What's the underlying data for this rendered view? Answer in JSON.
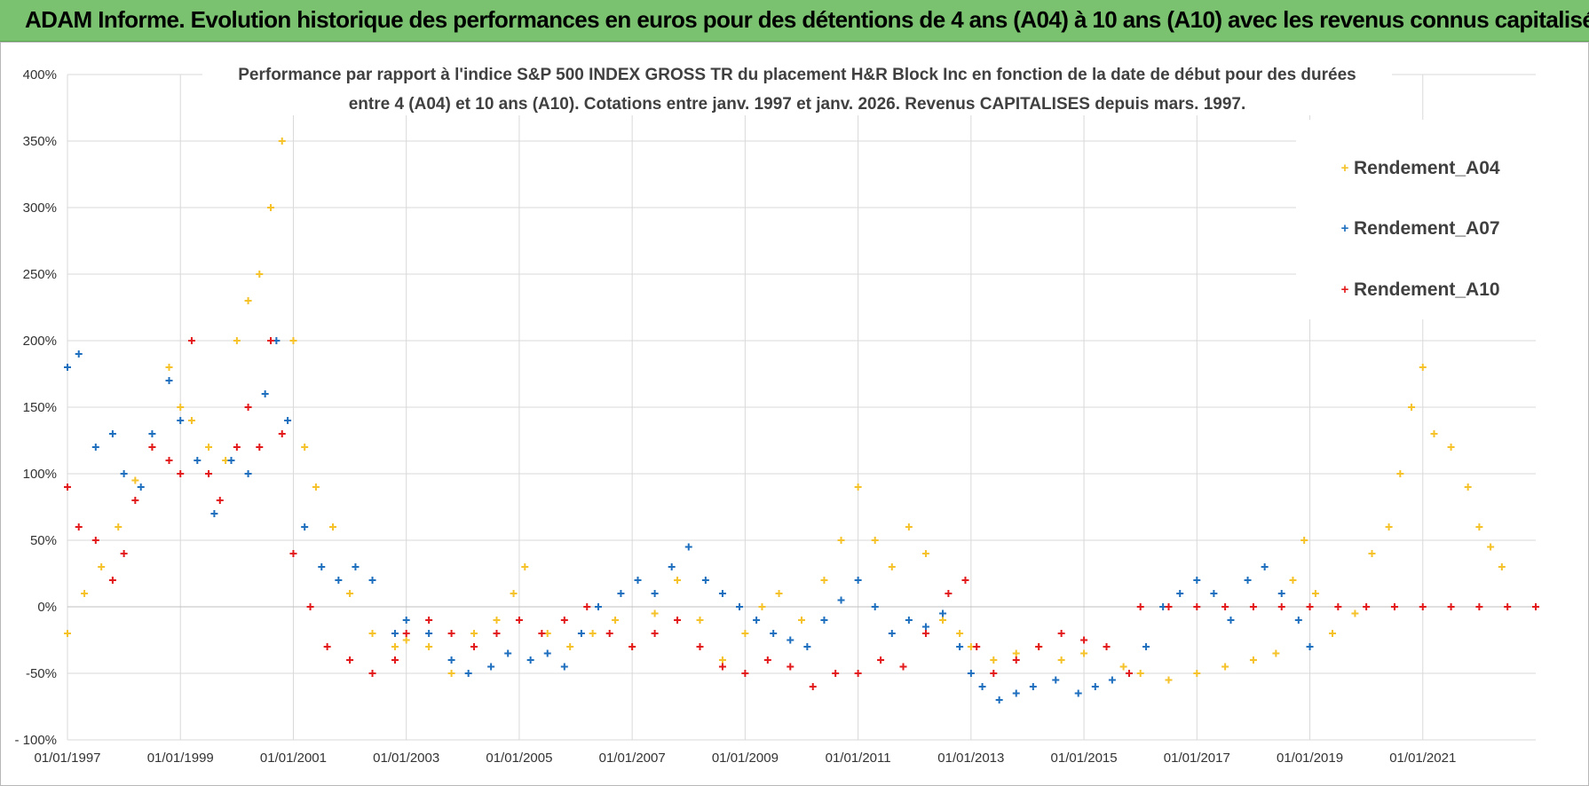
{
  "header": {
    "title": "ADAM Informe. Evolution historique des performances en euros pour des détentions de 4 ans (A04) à 10 ans (A10) avec les revenus connus capitalisés"
  },
  "colors": {
    "banner": "#7ac270",
    "A04": "#f5c22a",
    "A07": "#1f6fbf",
    "A10": "#e31a1c",
    "grid": "#d9d9d9"
  },
  "chart_data": {
    "type": "scatter",
    "title_line1": "Performance par rapport à l'indice S&P 500 INDEX GROSS TR  du placement H&R Block Inc en fonction de la date de début pour des durées",
    "title_line2": "entre 4 (A04) et 10 ans (A10). Cotations entre janv. 1997 et janv. 2026. Revenus CAPITALISES depuis mars. 1997.",
    "xlabel": "",
    "ylabel": "",
    "xlim": [
      1997.0,
      2023.0
    ],
    "ylim": [
      -100,
      400
    ],
    "y_ticks": [
      -100,
      -50,
      0,
      50,
      100,
      150,
      200,
      250,
      300,
      350,
      400
    ],
    "y_tick_labels": [
      "- 100%",
      "-50%",
      "0%",
      "50%",
      "100%",
      "150%",
      "200%",
      "250%",
      "300%",
      "350%",
      "400%"
    ],
    "x_ticks": [
      1997,
      1999,
      2001,
      2003,
      2005,
      2007,
      2009,
      2011,
      2013,
      2015,
      2017,
      2019,
      2021
    ],
    "x_tick_labels": [
      "01/01/1997",
      "01/01/1999",
      "01/01/2001",
      "01/01/2003",
      "01/01/2005",
      "01/01/2007",
      "01/01/2009",
      "01/01/2011",
      "01/01/2013",
      "01/01/2015",
      "01/01/2017",
      "01/01/2019",
      "01/01/2021"
    ],
    "legend_position": "top-right",
    "series": [
      {
        "name": "Rendement_A04",
        "key": "A04",
        "x": [
          1997.0,
          1997.3,
          1997.6,
          1997.9,
          1998.2,
          1998.5,
          1998.8,
          1999.0,
          1999.2,
          1999.5,
          1999.8,
          2000.0,
          2000.2,
          2000.4,
          2000.6,
          2000.8,
          2001.0,
          2001.2,
          2001.4,
          2001.7,
          2002.0,
          2002.4,
          2002.8,
          2003.0,
          2003.4,
          2003.8,
          2004.2,
          2004.6,
          2004.9,
          2005.1,
          2005.5,
          2005.9,
          2006.3,
          2006.7,
          2007.0,
          2007.4,
          2007.8,
          2008.2,
          2008.6,
          2009.0,
          2009.3,
          2009.6,
          2010.0,
          2010.4,
          2010.7,
          2011.0,
          2011.3,
          2011.6,
          2011.9,
          2012.2,
          2012.5,
          2012.8,
          2013.0,
          2013.4,
          2013.8,
          2014.2,
          2014.6,
          2015.0,
          2015.4,
          2015.7,
          2016.0,
          2016.5,
          2017.0,
          2017.5,
          2018.0,
          2018.4,
          2018.7,
          2018.9,
          2019.1,
          2019.4,
          2019.8,
          2020.1,
          2020.4,
          2020.6,
          2020.8,
          2021.0,
          2021.2,
          2021.5,
          2021.8,
          2022.0,
          2022.2,
          2022.4
        ],
        "y": [
          -20,
          10,
          30,
          60,
          95,
          120,
          180,
          150,
          140,
          120,
          110,
          200,
          230,
          250,
          300,
          350,
          200,
          120,
          90,
          60,
          10,
          -20,
          -30,
          -25,
          -30,
          -50,
          -20,
          -10,
          10,
          30,
          -20,
          -30,
          -20,
          -10,
          -30,
          -5,
          20,
          -10,
          -40,
          -20,
          0,
          10,
          -10,
          20,
          50,
          90,
          50,
          30,
          60,
          40,
          -10,
          -20,
          -30,
          -40,
          -35,
          -30,
          -40,
          -35,
          -30,
          -45,
          -50,
          -55,
          -50,
          -45,
          -40,
          -35,
          20,
          50,
          10,
          -20,
          -5,
          40,
          60,
          100,
          150,
          180,
          130,
          120,
          90,
          60,
          45,
          30
        ]
      },
      {
        "name": "Rendement_A07",
        "key": "A07",
        "x": [
          1997.0,
          1997.2,
          1997.5,
          1997.8,
          1998.0,
          1998.3,
          1998.5,
          1998.8,
          1999.0,
          1999.3,
          1999.6,
          1999.9,
          2000.2,
          2000.5,
          2000.7,
          2000.9,
          2001.2,
          2001.5,
          2001.8,
          2002.1,
          2002.4,
          2002.8,
          2003.0,
          2003.4,
          2003.8,
          2004.1,
          2004.5,
          2004.8,
          2005.2,
          2005.5,
          2005.8,
          2006.1,
          2006.4,
          2006.8,
          2007.1,
          2007.4,
          2007.7,
          2008.0,
          2008.3,
          2008.6,
          2008.9,
          2009.2,
          2009.5,
          2009.8,
          2010.1,
          2010.4,
          2010.7,
          2011.0,
          2011.3,
          2011.6,
          2011.9,
          2012.2,
          2012.5,
          2012.8,
          2013.0,
          2013.2,
          2013.5,
          2013.8,
          2014.1,
          2014.5,
          2014.9,
          2015.2,
          2015.5,
          2015.8,
          2016.1,
          2016.4,
          2016.7,
          2017.0,
          2017.3,
          2017.6,
          2017.9,
          2018.2,
          2018.5,
          2018.8,
          2019.0
        ],
        "y": [
          180,
          190,
          120,
          130,
          100,
          90,
          130,
          170,
          140,
          110,
          70,
          110,
          100,
          160,
          200,
          140,
          60,
          30,
          20,
          30,
          20,
          -20,
          -10,
          -20,
          -40,
          -50,
          -45,
          -35,
          -40,
          -35,
          -45,
          -20,
          0,
          10,
          20,
          10,
          30,
          45,
          20,
          10,
          0,
          -10,
          -20,
          -25,
          -30,
          -10,
          5,
          20,
          0,
          -20,
          -10,
          -15,
          -5,
          -30,
          -50,
          -60,
          -70,
          -65,
          -60,
          -55,
          -65,
          -60,
          -55,
          -50,
          -30,
          0,
          10,
          20,
          10,
          -10,
          20,
          30,
          10,
          -10,
          -30
        ]
      },
      {
        "name": "Rendement_A10",
        "key": "A10",
        "x": [
          1997.0,
          1997.2,
          1997.5,
          1997.8,
          1998.0,
          1998.2,
          1998.5,
          1998.8,
          1999.0,
          1999.2,
          1999.5,
          1999.7,
          2000.0,
          2000.2,
          2000.4,
          2000.6,
          2000.8,
          2001.0,
          2001.3,
          2001.6,
          2002.0,
          2002.4,
          2002.8,
          2003.0,
          2003.4,
          2003.8,
          2004.2,
          2004.6,
          2005.0,
          2005.4,
          2005.8,
          2006.2,
          2006.6,
          2007.0,
          2007.4,
          2007.8,
          2008.2,
          2008.6,
          2009.0,
          2009.4,
          2009.8,
          2010.2,
          2010.6,
          2011.0,
          2011.4,
          2011.8,
          2012.2,
          2012.6,
          2012.9,
          2013.1,
          2013.4,
          2013.8,
          2014.2,
          2014.6,
          2015.0,
          2015.4,
          2015.8,
          2016.0,
          2016.5,
          2017.0,
          2017.5,
          2018.0,
          2018.5,
          2019.0,
          2019.5,
          2020.0,
          2020.5,
          2021.0,
          2021.5,
          2022.0,
          2022.5,
          2023.0
        ],
        "y": [
          90,
          60,
          50,
          20,
          40,
          80,
          120,
          110,
          100,
          200,
          100,
          80,
          120,
          150,
          120,
          200,
          130,
          40,
          0,
          -30,
          -40,
          -50,
          -40,
          -20,
          -10,
          -20,
          -30,
          -20,
          -10,
          -20,
          -10,
          0,
          -20,
          -30,
          -20,
          -10,
          -30,
          -45,
          -50,
          -40,
          -45,
          -60,
          -50,
          -50,
          -40,
          -45,
          -20,
          10,
          20,
          -30,
          -50,
          -40,
          -30,
          -20,
          -25,
          -30,
          -50,
          0,
          0,
          0,
          0,
          0,
          0,
          0,
          0,
          0,
          0,
          0,
          0,
          0,
          0,
          0
        ]
      }
    ]
  }
}
